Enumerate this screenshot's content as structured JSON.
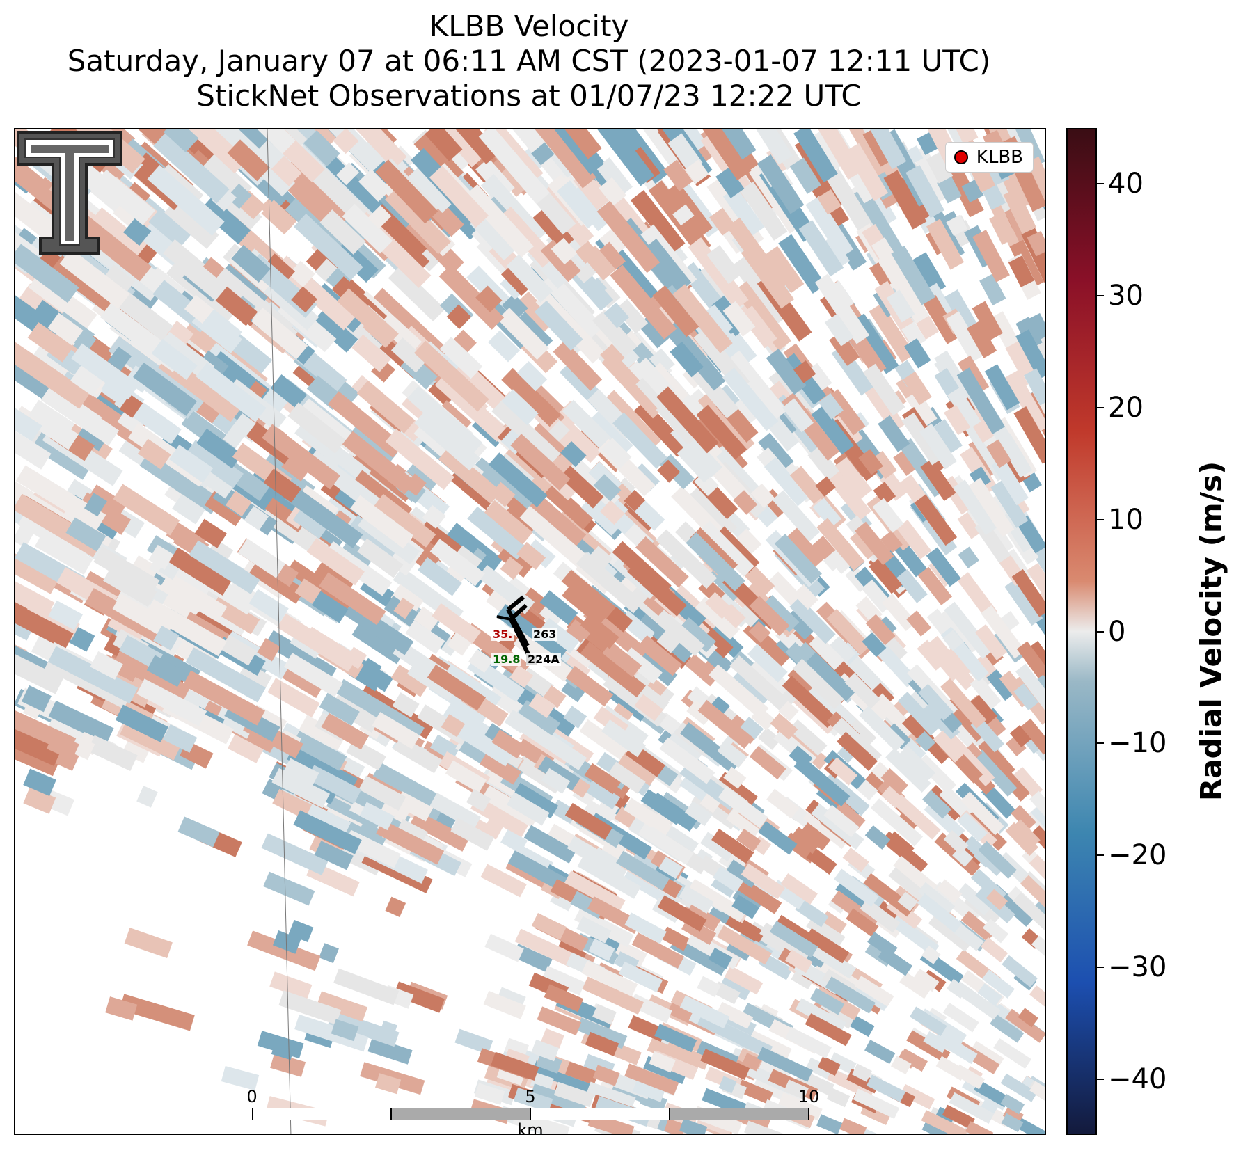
{
  "title": {
    "line1": "KLBB Velocity",
    "line2": "Saturday, January 07 at 06:11 AM CST (2023-01-07 12:11 UTC)",
    "line3": "StickNet Observations at 01/07/23 12:22 UTC"
  },
  "legend": {
    "label": "KLBB",
    "marker_color": "#e00000"
  },
  "stations": [
    {
      "id": "263",
      "value": "35.",
      "value_color": "#b00000"
    },
    {
      "id": "224A",
      "value": "19.8",
      "value_color": "#006400"
    }
  ],
  "scalebar": {
    "labels": [
      "0",
      "5",
      "10"
    ],
    "unit": "km"
  },
  "colorbar": {
    "title": "Radial Velocity (m/s)",
    "ticks": [
      40,
      30,
      20,
      10,
      0,
      -10,
      -20,
      -30,
      -40
    ],
    "tick_labels": [
      "40",
      "30",
      "20",
      "10",
      "0",
      "−10",
      "−20",
      "−30",
      "−40"
    ],
    "range": [
      -45,
      45
    ]
  },
  "logo": {
    "name": "texas-tech-double-t-logo"
  },
  "colors": {
    "positive": "#d4907a",
    "negative": "#7aa8bf",
    "neutral": "#e6e6e6"
  }
}
